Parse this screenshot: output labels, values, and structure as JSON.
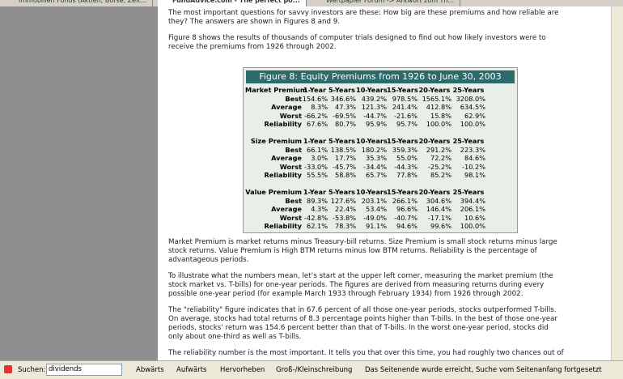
{
  "tabs": [
    "Immobilien Fonds (Aktien, Börse, Zeit...",
    "FundAdvice.com - The perfect po...",
    "Wertpapier Forum -> Antwort zum Th..."
  ],
  "paragraphs_top": [
    [
      "The most important questions for savvy investors are these: How big are these premiums and how reliable are",
      "they? The answers are shown in Figures 8 and 9."
    ],
    [
      "Figure 8 shows the results of thousands of computer trials designed to find out how likely investors were to",
      "receive the premiums from 1926 through 2002."
    ]
  ],
  "table": {
    "title": "Figure 8: Equity Premiums from 1926 to June 30, 2003",
    "sections": [
      {
        "header": [
          "Market Premium",
          "1-Year",
          "5-Years",
          "10-Years",
          "15-Years",
          "20-Years",
          "25-Years"
        ],
        "rows": [
          [
            "Best",
            "154.6%",
            "346.6%",
            "439.2%",
            "978.5%",
            "1565.1%",
            "3208.0%"
          ],
          [
            "Average",
            "8.3%",
            "47.3%",
            "121.3%",
            "241.4%",
            "412.8%",
            "634.5%"
          ],
          [
            "Worst",
            "-66.2%",
            "-69.5%",
            "-44.7%",
            "-21.6%",
            "15.8%",
            "62.9%"
          ],
          [
            "Reliability",
            "67.6%",
            "80.7%",
            "95.9%",
            "95.7%",
            "100.0%",
            "100.0%"
          ]
        ]
      },
      {
        "header": [
          "Size Premium",
          "1-Year",
          "5-Years",
          "10-Years",
          "15-Years",
          "20-Years",
          "25-Years"
        ],
        "rows": [
          [
            "Best",
            "66.1%",
            "138.5%",
            "180.2%",
            "359.3%",
            "291.2%",
            "223.3%"
          ],
          [
            "Average",
            "3.0%",
            "17.7%",
            "35.3%",
            "55.0%",
            "72.2%",
            "84.6%"
          ],
          [
            "Worst",
            "-33.0%",
            "-45.7%",
            "-34.4%",
            "-44.3%",
            "-25.2%",
            "-10.2%"
          ],
          [
            "Reliability",
            "55.5%",
            "58.8%",
            "65.7%",
            "77.8%",
            "85.2%",
            "98.1%"
          ]
        ]
      },
      {
        "header": [
          "Value Premium",
          "1-Year",
          "5-Years",
          "10-Years",
          "15-Years",
          "20-Years",
          "25-Years"
        ],
        "rows": [
          [
            "Best",
            "89.3%",
            "127.6%",
            "203.1%",
            "266.1%",
            "304.6%",
            "394.4%"
          ],
          [
            "Average",
            "4.3%",
            "22.4%",
            "53.4%",
            "96.6%",
            "146.4%",
            "206.1%"
          ],
          [
            "Worst",
            "-42.8%",
            "-53.8%",
            "-49.0%",
            "-40.7%",
            "-17.1%",
            "10.6%"
          ],
          [
            "Reliability",
            "62.1%",
            "78.3%",
            "91.1%",
            "94.6%",
            "99.6%",
            "100.0%"
          ]
        ]
      }
    ]
  },
  "paragraphs_bottom": [
    [
      "Market Premium is market returns minus Treasury-bill returns. Size Premium is small stock returns minus large",
      "stock returns. Value Premium is High BTM returns minus low BTM returns. Reliability is the percentage of",
      "advantageous periods."
    ],
    [
      "To illustrate what the numbers mean, let’s start at the upper left corner, measuring the market premium (the",
      "stock market vs. T-bills) for one-year periods. The figures are derived from measuring returns during every",
      "possible one-year period (for example March 1933 through February 1934) from 1926 through 2002."
    ],
    [
      "The \"reliability\" figure indicates that in 67.6 percent of all those one-year periods, stocks outperformed T-bills.",
      "On average, stocks had total returns of 8.3 percentage points higher than T-bills. In the best of those one-year",
      "periods, stocks' return was 154.6 percent better than that of T-bills. In the worst one-year period, stocks did",
      "only about one-third as well as T-bills."
    ],
    [
      "The reliability number is the most important. It tells you that over this time, you had roughly two chances out of"
    ]
  ],
  "findbar": {
    "label": "Suchen:",
    "query": "dividends",
    "down": "Abwärts",
    "up": "Aufwärts",
    "highlight": "Hervorheben",
    "matchcase": "Groß-/Kleinschreibung",
    "status": "Das Seitenende wurde erreicht, Suche vom Seitenanfang fortgesetzt"
  }
}
